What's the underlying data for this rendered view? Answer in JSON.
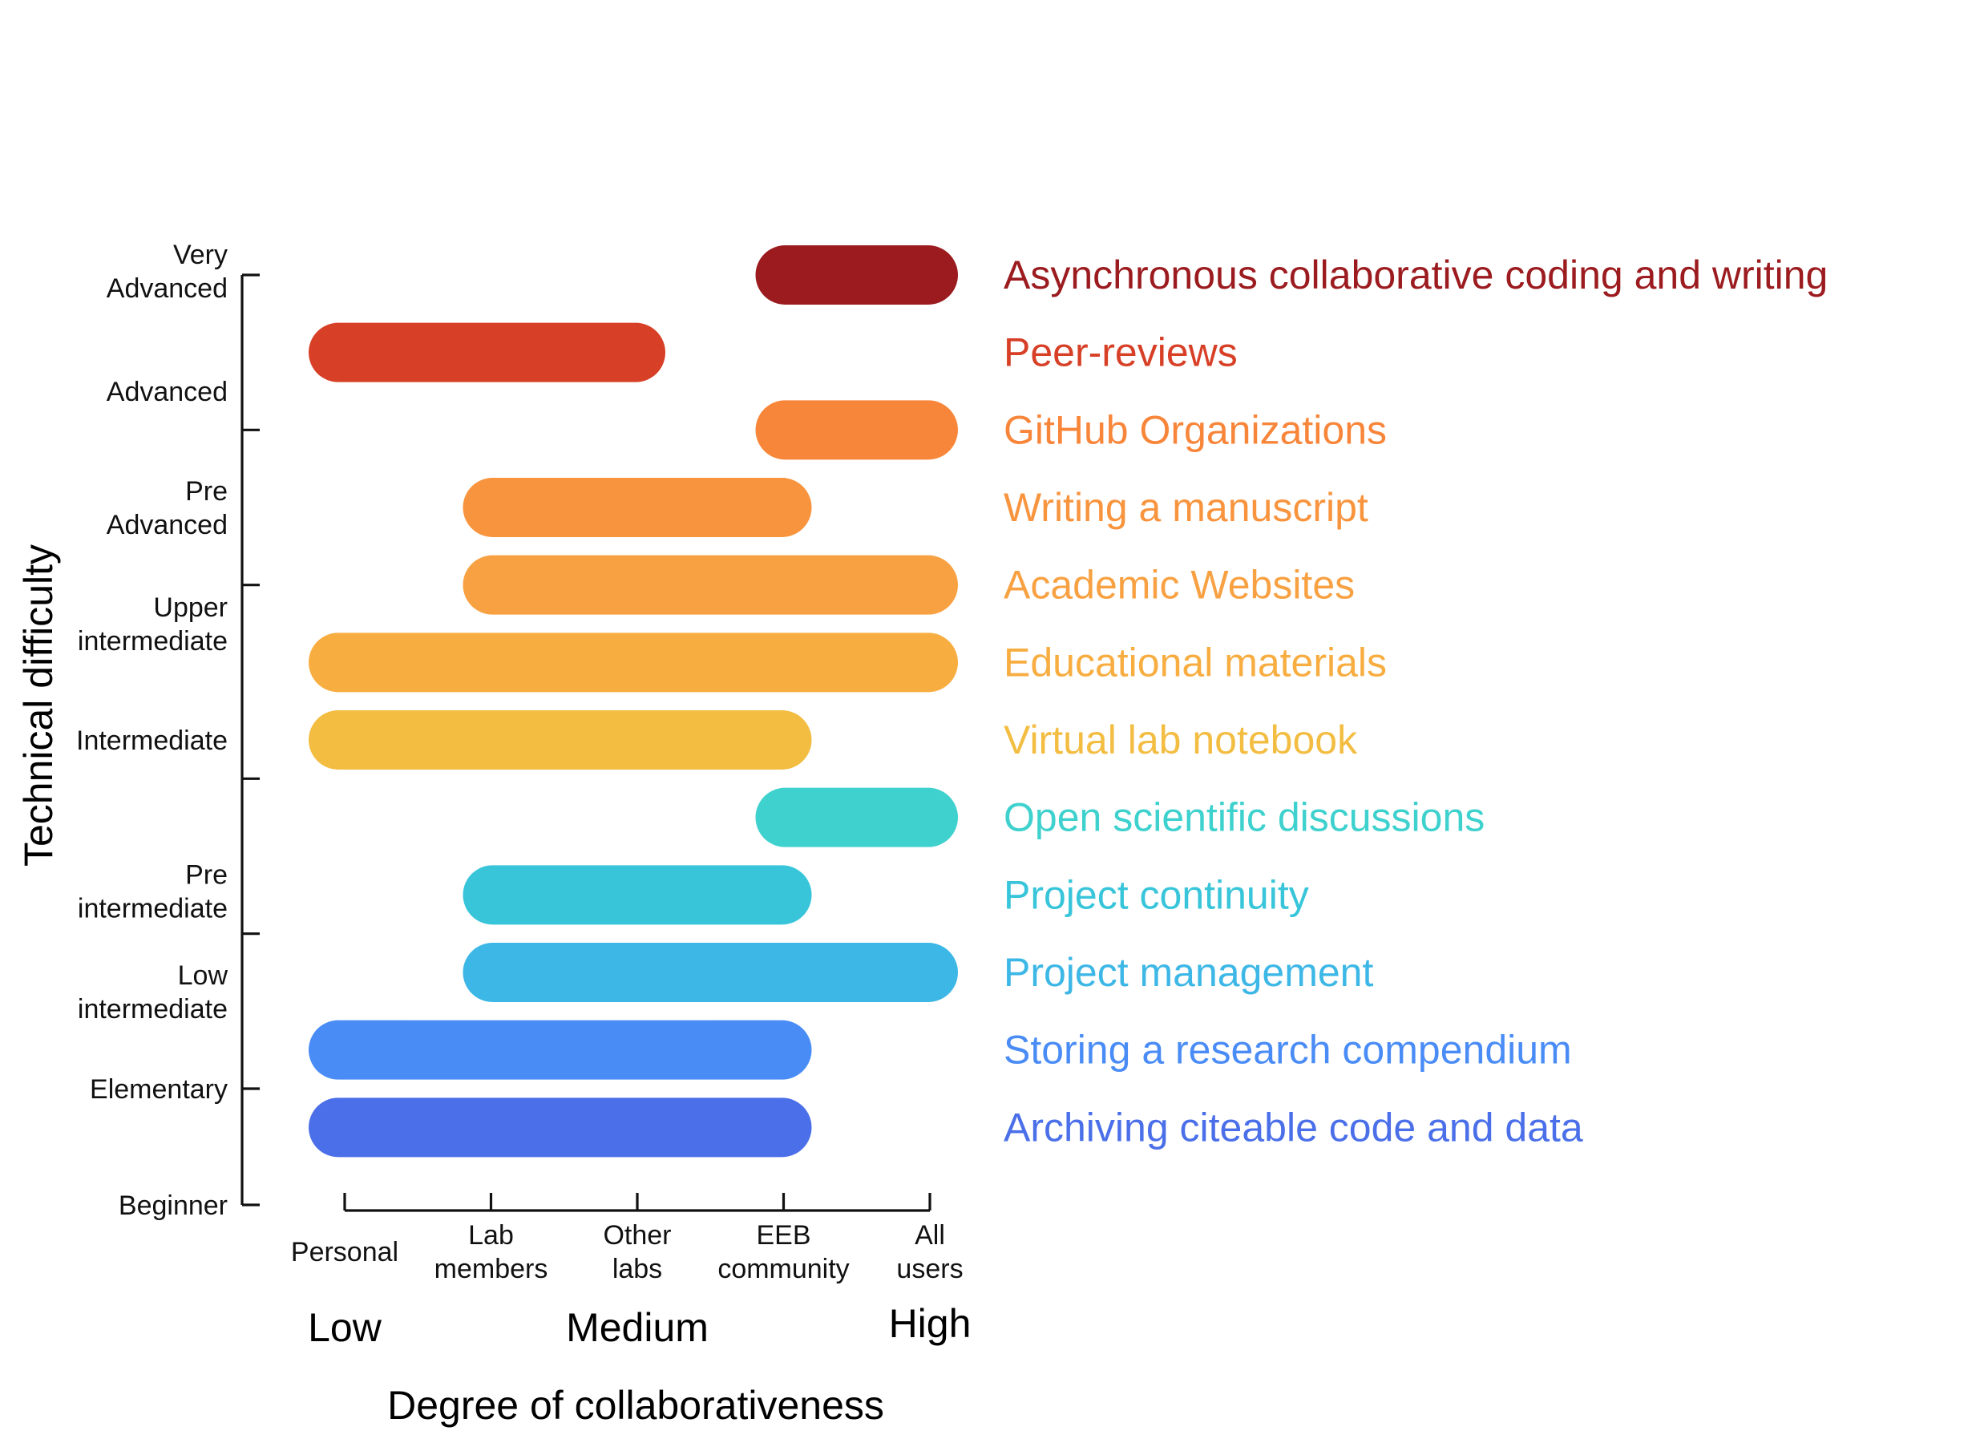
{
  "chart_data": {
    "type": "bar",
    "orientation": "horizontal-range",
    "title": "",
    "xlabel": "Degree of collaborativeness",
    "ylabel": "Technical difficulty",
    "x_categories": [
      [
        "Personal"
      ],
      [
        "Lab",
        "members"
      ],
      [
        "Other",
        "labs"
      ],
      [
        "EEB",
        "community"
      ],
      [
        "All",
        "users"
      ]
    ],
    "x_levels": [
      {
        "label": "Low",
        "at": 0
      },
      {
        "label": "Medium",
        "at": 2
      },
      {
        "label": "High",
        "at": 4
      }
    ],
    "y_levels": [
      [
        "Beginner"
      ],
      [
        "Elementary"
      ],
      [
        "Low",
        "intermediate"
      ],
      [
        "Pre",
        "intermediate"
      ],
      [
        "Intermediate"
      ],
      [
        "Upper",
        "intermediate"
      ],
      [
        "Pre",
        "Advanced"
      ],
      [
        "Advanced"
      ],
      [
        "Very",
        "Advanced"
      ]
    ],
    "ylim": [
      0,
      12
    ],
    "xlim": [
      0,
      4
    ],
    "series": [
      {
        "name": "Asynchronous collaborative coding and writing",
        "start": 3,
        "end": 4,
        "y": 12,
        "color": "#9b1b1f"
      },
      {
        "name": "Peer-reviews",
        "start": 0,
        "end": 2,
        "y": 11,
        "color": "#d73f26"
      },
      {
        "name": "GitHub Organizations",
        "start": 3,
        "end": 4,
        "y": 10,
        "color": "#f8863a"
      },
      {
        "name": "Writing a manuscript",
        "start": 1,
        "end": 3,
        "y": 9,
        "color": "#f8943e"
      },
      {
        "name": "Academic Websites",
        "start": 1,
        "end": 4,
        "y": 8,
        "color": "#f8a142"
      },
      {
        "name": "Educational materials",
        "start": 0,
        "end": 4,
        "y": 7,
        "color": "#f8ad41"
      },
      {
        "name": "Virtual lab notebook",
        "start": 0,
        "end": 3,
        "y": 6,
        "color": "#f3bd42"
      },
      {
        "name": "Open scientific discussions",
        "start": 3,
        "end": 4,
        "y": 5,
        "color": "#3ed1cd"
      },
      {
        "name": "Project continuity",
        "start": 1,
        "end": 3,
        "y": 4,
        "color": "#38c5da"
      },
      {
        "name": "Project management",
        "start": 1,
        "end": 4,
        "y": 3,
        "color": "#3db7e6"
      },
      {
        "name": "Storing a research compendium",
        "start": 0,
        "end": 3,
        "y": 2,
        "color": "#4a8cf6"
      },
      {
        "name": "Archiving citeable code and data",
        "start": 0,
        "end": 3,
        "y": 1,
        "color": "#4a6fe9"
      }
    ]
  }
}
